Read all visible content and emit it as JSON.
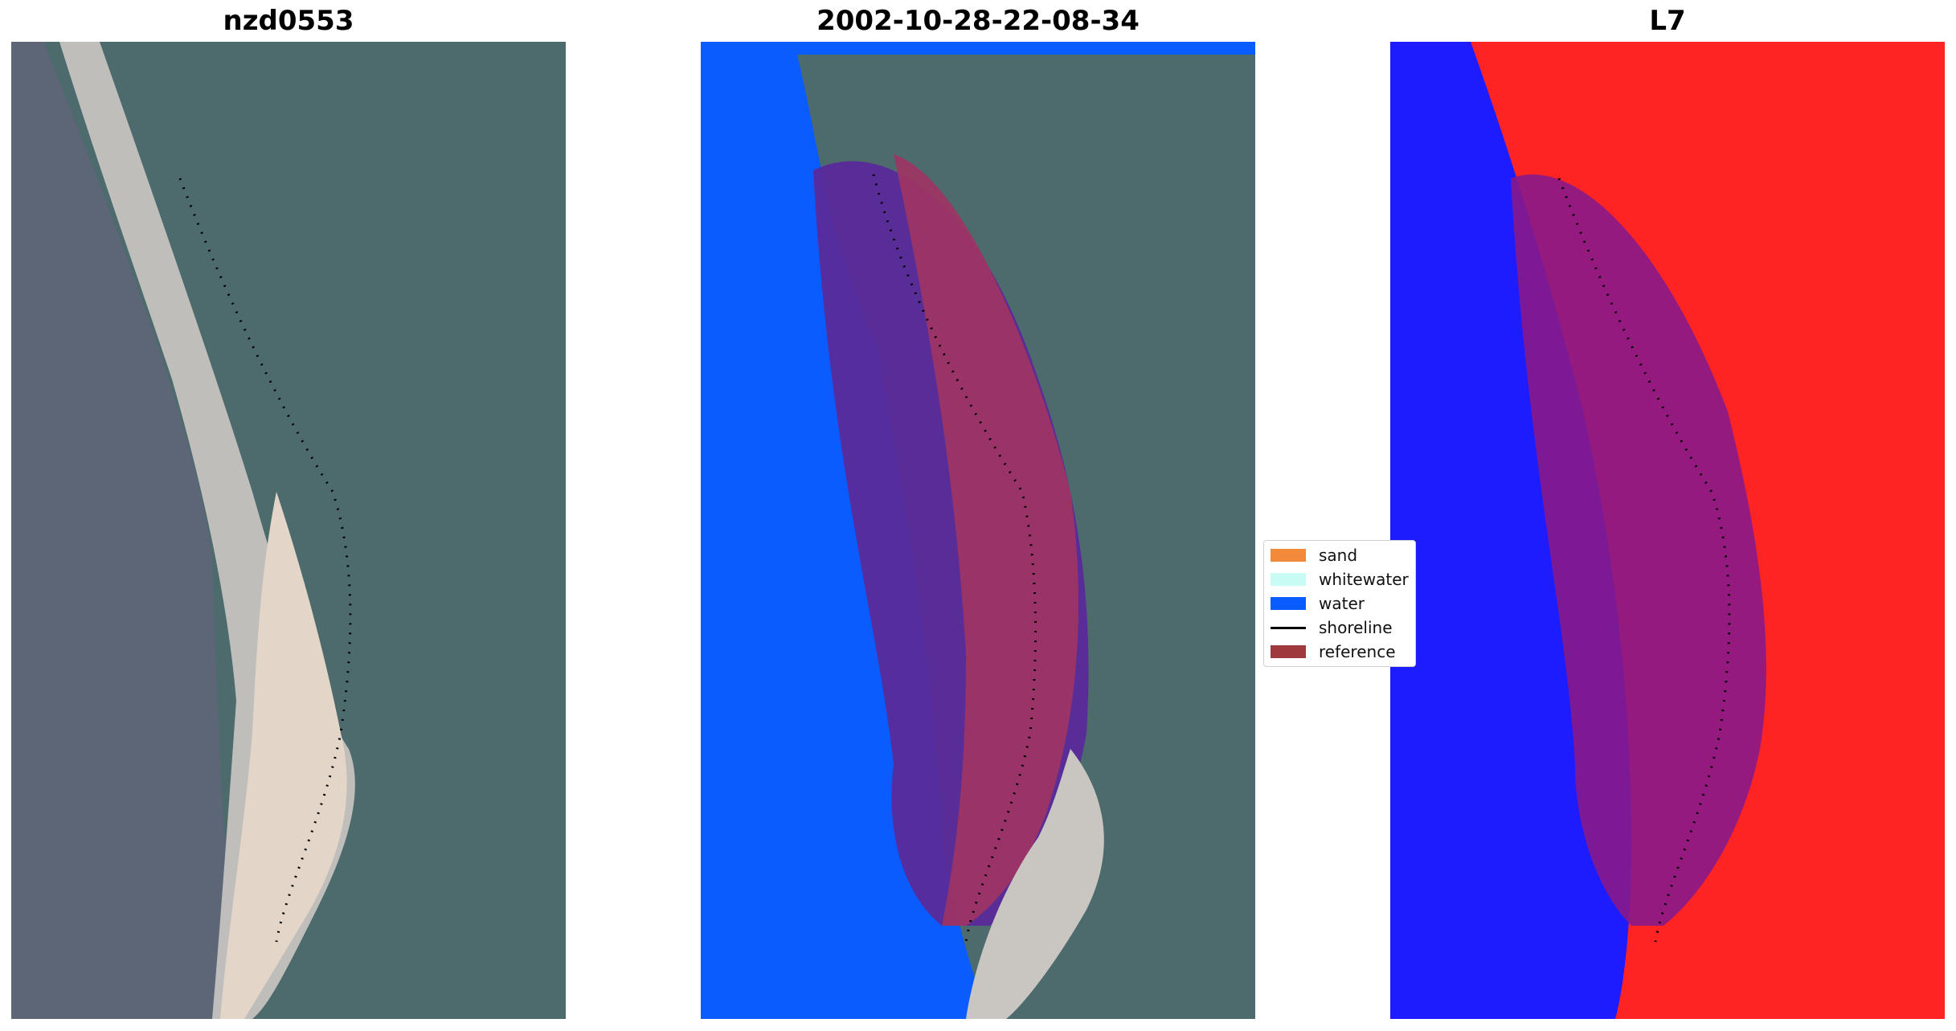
{
  "panels": [
    {
      "title": "nzd0553",
      "view": "rgb"
    },
    {
      "title": "2002-10-28-22-08-34",
      "view": "classified"
    },
    {
      "title": "L7",
      "view": "index"
    }
  ],
  "legend": {
    "items": [
      {
        "label": "sand",
        "color": "#f28a3c",
        "kind": "patch"
      },
      {
        "label": "whitewater",
        "color": "#c8fbf3",
        "kind": "patch"
      },
      {
        "label": "water",
        "color": "#0a5cff",
        "kind": "patch"
      },
      {
        "label": "shoreline",
        "color": "#000000",
        "kind": "line"
      },
      {
        "label": "reference",
        "color": "#9e3a3e",
        "kind": "patch"
      }
    ]
  },
  "colors": {
    "land": "#4a6a70",
    "sea": "#5a6474",
    "beach": "#cfc6bb",
    "water_class": "#0a5cff",
    "reference_band": "#a03463",
    "index_positive": "#ff2222",
    "index_negative": "#1a1aff"
  }
}
